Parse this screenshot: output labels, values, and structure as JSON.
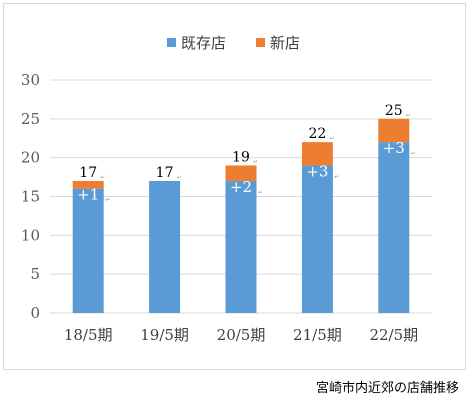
{
  "caption": "宮崎市内近郊の店舗推移",
  "chart_data": {
    "type": "bar",
    "stacked": true,
    "categories": [
      "18/5期",
      "19/5期",
      "20/5期",
      "21/5期",
      "22/5期"
    ],
    "series": [
      {
        "name": "既存店",
        "color": "#5b9bd5",
        "values": [
          16,
          17,
          17,
          19,
          22
        ]
      },
      {
        "name": "新店",
        "color": "#ed7d31",
        "values": [
          1,
          0,
          2,
          3,
          3
        ]
      }
    ],
    "totals": [
      "17",
      "17",
      "19",
      "22",
      "25"
    ],
    "increment_labels": [
      "+1",
      "",
      "+2",
      "+3",
      "+3"
    ],
    "yticks": [
      "0",
      "5",
      "10",
      "15",
      "20",
      "25",
      "30"
    ],
    "ylim": [
      0,
      30
    ],
    "grid": true,
    "legend_position": "top-center",
    "title": "",
    "xlabel": "",
    "ylabel": ""
  }
}
